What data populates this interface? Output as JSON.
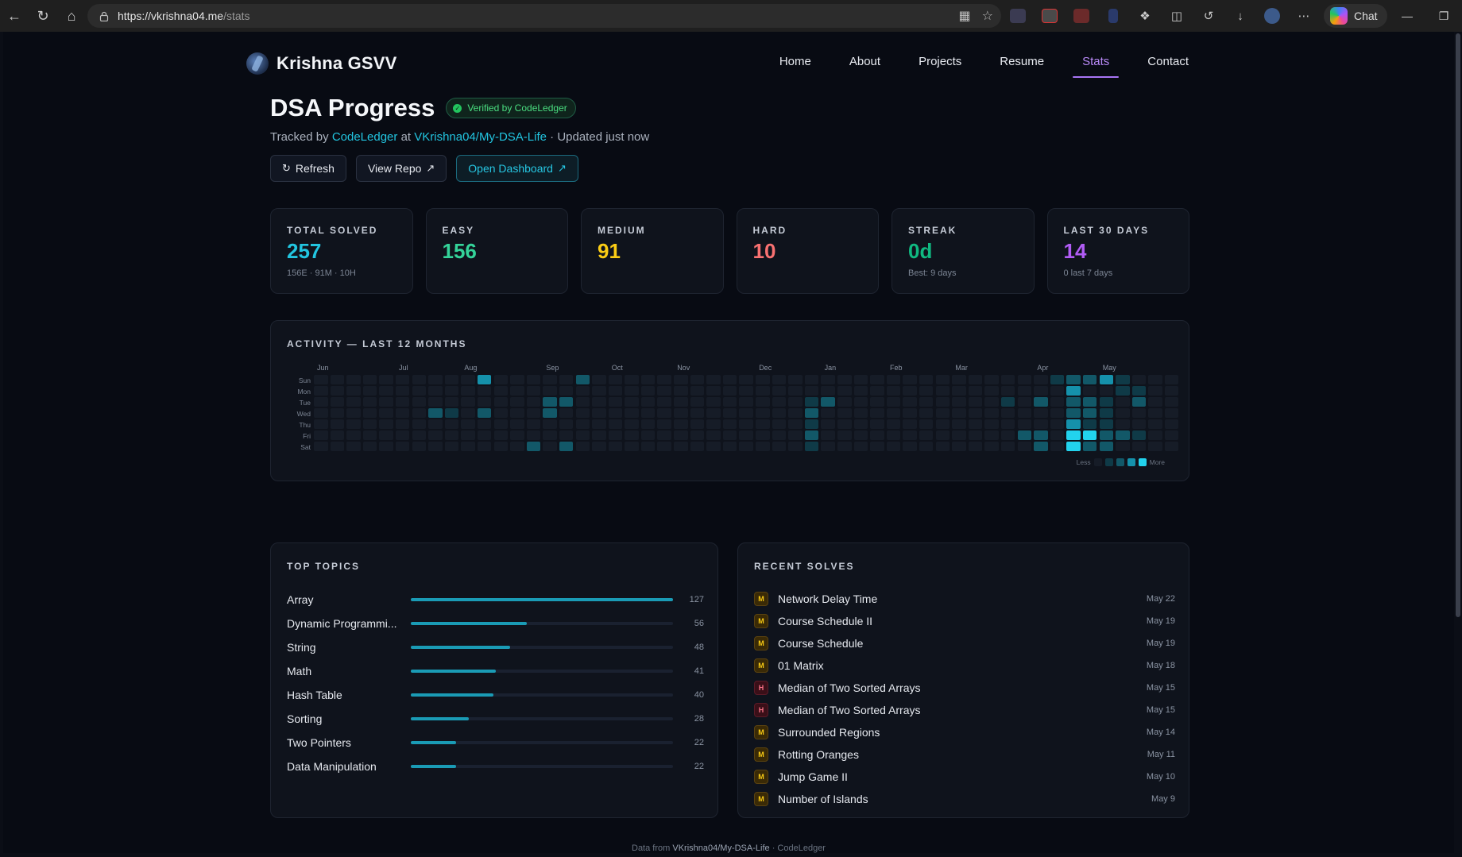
{
  "browser": {
    "url_host": "https://vkrishna04.me",
    "url_path": "/stats",
    "chat_label": "Chat"
  },
  "site": {
    "brand": "Krishna GSVV",
    "nav": [
      "Home",
      "About",
      "Projects",
      "Resume",
      "Stats",
      "Contact"
    ],
    "active_nav": "Stats"
  },
  "header": {
    "title": "DSA Progress",
    "verified_label": "Verified by CodeLedger",
    "tracked_by_prefix": "Tracked by",
    "tracker": "CodeLedger",
    "at_word": "at",
    "repo": "VKrishna04/My-DSA-Life",
    "updated": "· Updated just now"
  },
  "buttons": {
    "refresh": "Refresh",
    "view_repo": "View Repo",
    "open_dashboard": "Open Dashboard"
  },
  "stats": [
    {
      "label": "TOTAL SOLVED",
      "value": "257",
      "sub": "156E · 91M · 10H",
      "color": "#22c5e0"
    },
    {
      "label": "EASY",
      "value": "156",
      "sub": "",
      "color": "#34d399"
    },
    {
      "label": "MEDIUM",
      "value": "91",
      "sub": "",
      "color": "#facc15"
    },
    {
      "label": "HARD",
      "value": "10",
      "sub": "",
      "color": "#f87171"
    },
    {
      "label": "STREAK",
      "value": "0d",
      "sub": "Best: 9 days",
      "color": "#10b981"
    },
    {
      "label": "LAST 30 DAYS",
      "value": "14",
      "sub": "0 last 7 days",
      "color": "#b15cf5"
    }
  ],
  "activity": {
    "title": "ACTIVITY — LAST 12 MONTHS",
    "months": [
      "Jun",
      "Jul",
      "Aug",
      "Sep",
      "Oct",
      "Nov",
      "Dec",
      "Jan",
      "Feb",
      "Mar",
      "Apr",
      "May"
    ],
    "days": [
      "Sun",
      "Mon",
      "Tue",
      "Wed",
      "Thu",
      "Fri",
      "Sat"
    ],
    "legend_less": "Less",
    "legend_more": "More",
    "weeks": 53,
    "active_cells": [
      {
        "w": 10,
        "d": 0,
        "level": 3
      },
      {
        "w": 7,
        "d": 3,
        "level": 2
      },
      {
        "w": 8,
        "d": 3,
        "level": 1
      },
      {
        "w": 10,
        "d": 3,
        "level": 2
      },
      {
        "w": 14,
        "d": 2,
        "level": 2
      },
      {
        "w": 15,
        "d": 2,
        "level": 2
      },
      {
        "w": 14,
        "d": 3,
        "level": 2
      },
      {
        "w": 13,
        "d": 6,
        "level": 2
      },
      {
        "w": 15,
        "d": 6,
        "level": 2
      },
      {
        "w": 16,
        "d": 0,
        "level": 2
      },
      {
        "w": 30,
        "d": 2,
        "level": 1
      },
      {
        "w": 31,
        "d": 2,
        "level": 2
      },
      {
        "w": 30,
        "d": 3,
        "level": 2
      },
      {
        "w": 30,
        "d": 4,
        "level": 1
      },
      {
        "w": 30,
        "d": 5,
        "level": 2
      },
      {
        "w": 30,
        "d": 6,
        "level": 1
      },
      {
        "w": 42,
        "d": 2,
        "level": 1
      },
      {
        "w": 44,
        "d": 2,
        "level": 2
      },
      {
        "w": 43,
        "d": 5,
        "level": 2
      },
      {
        "w": 44,
        "d": 5,
        "level": 2
      },
      {
        "w": 44,
        "d": 6,
        "level": 2
      },
      {
        "w": 45,
        "d": 0,
        "level": 1
      },
      {
        "w": 46,
        "d": 0,
        "level": 2
      },
      {
        "w": 47,
        "d": 0,
        "level": 2
      },
      {
        "w": 48,
        "d": 0,
        "level": 3
      },
      {
        "w": 49,
        "d": 0,
        "level": 1
      },
      {
        "w": 46,
        "d": 1,
        "level": 3
      },
      {
        "w": 49,
        "d": 1,
        "level": 1
      },
      {
        "w": 50,
        "d": 1,
        "level": 1
      },
      {
        "w": 46,
        "d": 2,
        "level": 2
      },
      {
        "w": 47,
        "d": 2,
        "level": 2
      },
      {
        "w": 48,
        "d": 2,
        "level": 1
      },
      {
        "w": 50,
        "d": 2,
        "level": 2
      },
      {
        "w": 46,
        "d": 3,
        "level": 2
      },
      {
        "w": 47,
        "d": 3,
        "level": 2
      },
      {
        "w": 48,
        "d": 3,
        "level": 1
      },
      {
        "w": 46,
        "d": 4,
        "level": 3
      },
      {
        "w": 47,
        "d": 4,
        "level": 1
      },
      {
        "w": 48,
        "d": 4,
        "level": 1
      },
      {
        "w": 46,
        "d": 5,
        "level": 4
      },
      {
        "w": 47,
        "d": 5,
        "level": 4
      },
      {
        "w": 48,
        "d": 5,
        "level": 2
      },
      {
        "w": 49,
        "d": 5,
        "level": 2
      },
      {
        "w": 50,
        "d": 5,
        "level": 1
      },
      {
        "w": 46,
        "d": 6,
        "level": 4
      },
      {
        "w": 47,
        "d": 6,
        "level": 2
      },
      {
        "w": 48,
        "d": 6,
        "level": 2
      }
    ]
  },
  "topics": {
    "title": "TOP TOPICS",
    "max": 127,
    "items": [
      {
        "name": "Array",
        "count": 127
      },
      {
        "name": "Dynamic Programmi...",
        "count": 56
      },
      {
        "name": "String",
        "count": 48
      },
      {
        "name": "Math",
        "count": 41
      },
      {
        "name": "Hash Table",
        "count": 40
      },
      {
        "name": "Sorting",
        "count": 28
      },
      {
        "name": "Two Pointers",
        "count": 22
      },
      {
        "name": "Data Manipulation",
        "count": 22
      }
    ]
  },
  "recent": {
    "title": "RECENT SOLVES",
    "items": [
      {
        "difficulty": "M",
        "name": "Network Delay Time",
        "date": "May 22"
      },
      {
        "difficulty": "M",
        "name": "Course Schedule II",
        "date": "May 19"
      },
      {
        "difficulty": "M",
        "name": "Course Schedule",
        "date": "May 19"
      },
      {
        "difficulty": "M",
        "name": "01 Matrix",
        "date": "May 18"
      },
      {
        "difficulty": "H",
        "name": "Median of Two Sorted Arrays",
        "date": "May 15"
      },
      {
        "difficulty": "H",
        "name": "Median of Two Sorted Arrays",
        "date": "May 15"
      },
      {
        "difficulty": "M",
        "name": "Surrounded Regions",
        "date": "May 14"
      },
      {
        "difficulty": "M",
        "name": "Rotting Oranges",
        "date": "May 11"
      },
      {
        "difficulty": "M",
        "name": "Jump Game II",
        "date": "May 10"
      },
      {
        "difficulty": "M",
        "name": "Number of Islands",
        "date": "May 9"
      }
    ]
  },
  "footer": {
    "prefix": "Data from",
    "repo": "VKrishna04/My-DSA-Life",
    "suffix": "· CodeLedger"
  }
}
